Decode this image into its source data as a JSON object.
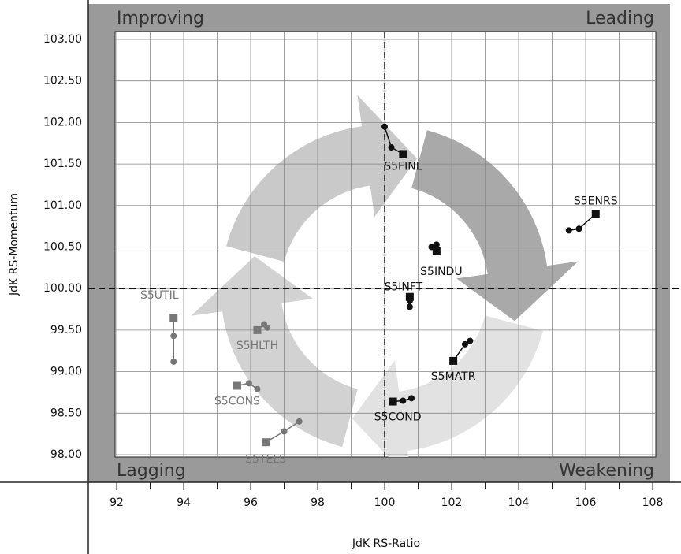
{
  "chart_data": {
    "type": "scatter",
    "x_label": "JdK RS-Ratio",
    "y_label": "JdK RS-Momentum",
    "quadrants": {
      "top_left": "Improving",
      "top_right": "Leading",
      "bottom_left": "Lagging",
      "bottom_right": "Weakening"
    },
    "xlim": [
      92,
      108
    ],
    "ylim": [
      98,
      103
    ],
    "xticks": [
      92,
      94,
      96,
      98,
      100,
      102,
      104,
      106,
      108
    ],
    "xminorticks": [
      93,
      95,
      97,
      99,
      101,
      103,
      105,
      107
    ],
    "yticks": [
      {
        "value": 98,
        "label": "98.00"
      },
      {
        "value": 98.5,
        "label": "98.50"
      },
      {
        "value": 99,
        "label": "99.00"
      },
      {
        "value": 99.5,
        "label": "99.50"
      },
      {
        "value": 100,
        "label": "100.00"
      },
      {
        "value": 100.5,
        "label": "100.50"
      },
      {
        "value": 101,
        "label": "101.00"
      },
      {
        "value": 101.5,
        "label": "101.50"
      },
      {
        "value": 102,
        "label": "102.00"
      },
      {
        "value": 102.5,
        "label": "102.50"
      },
      {
        "value": 103,
        "label": "103.00"
      }
    ],
    "reference_x": 100,
    "reference_y": 100,
    "grid": true,
    "series": [
      {
        "name": "S5FINL",
        "color": "#111111",
        "x": [
          100.0,
          100.2,
          100.55
        ],
        "y": [
          101.95,
          101.7,
          101.62
        ]
      },
      {
        "name": "S5ENRS",
        "color": "#111111",
        "x": [
          105.5,
          105.8,
          106.3
        ],
        "y": [
          100.7,
          100.72,
          100.9
        ]
      },
      {
        "name": "S5INDU",
        "color": "#111111",
        "x": [
          101.4,
          101.55,
          101.55
        ],
        "y": [
          100.5,
          100.53,
          100.45
        ]
      },
      {
        "name": "S5INFT",
        "color": "#111111",
        "x": [
          100.75,
          100.75,
          100.75
        ],
        "y": [
          99.78,
          99.85,
          99.9
        ]
      },
      {
        "name": "S5MATR",
        "color": "#111111",
        "x": [
          102.55,
          102.4,
          102.05
        ],
        "y": [
          99.37,
          99.33,
          99.13
        ]
      },
      {
        "name": "S5COND",
        "color": "#111111",
        "x": [
          100.8,
          100.55,
          100.25
        ],
        "y": [
          98.68,
          98.65,
          98.64
        ]
      },
      {
        "name": "S5UTIL",
        "color": "#777777",
        "x": [
          93.7,
          93.7,
          93.7
        ],
        "y": [
          99.12,
          99.43,
          99.65
        ]
      },
      {
        "name": "S5HLTH",
        "color": "#777777",
        "x": [
          96.5,
          96.4,
          96.2
        ],
        "y": [
          99.53,
          99.57,
          99.5
        ]
      },
      {
        "name": "S5CONS",
        "color": "#777777",
        "x": [
          96.2,
          95.95,
          95.6
        ],
        "y": [
          98.79,
          98.86,
          98.83
        ]
      },
      {
        "name": "S5TELS",
        "color": "#777777",
        "x": [
          97.45,
          97.0,
          96.45
        ],
        "y": [
          98.4,
          98.28,
          98.15
        ]
      }
    ]
  }
}
